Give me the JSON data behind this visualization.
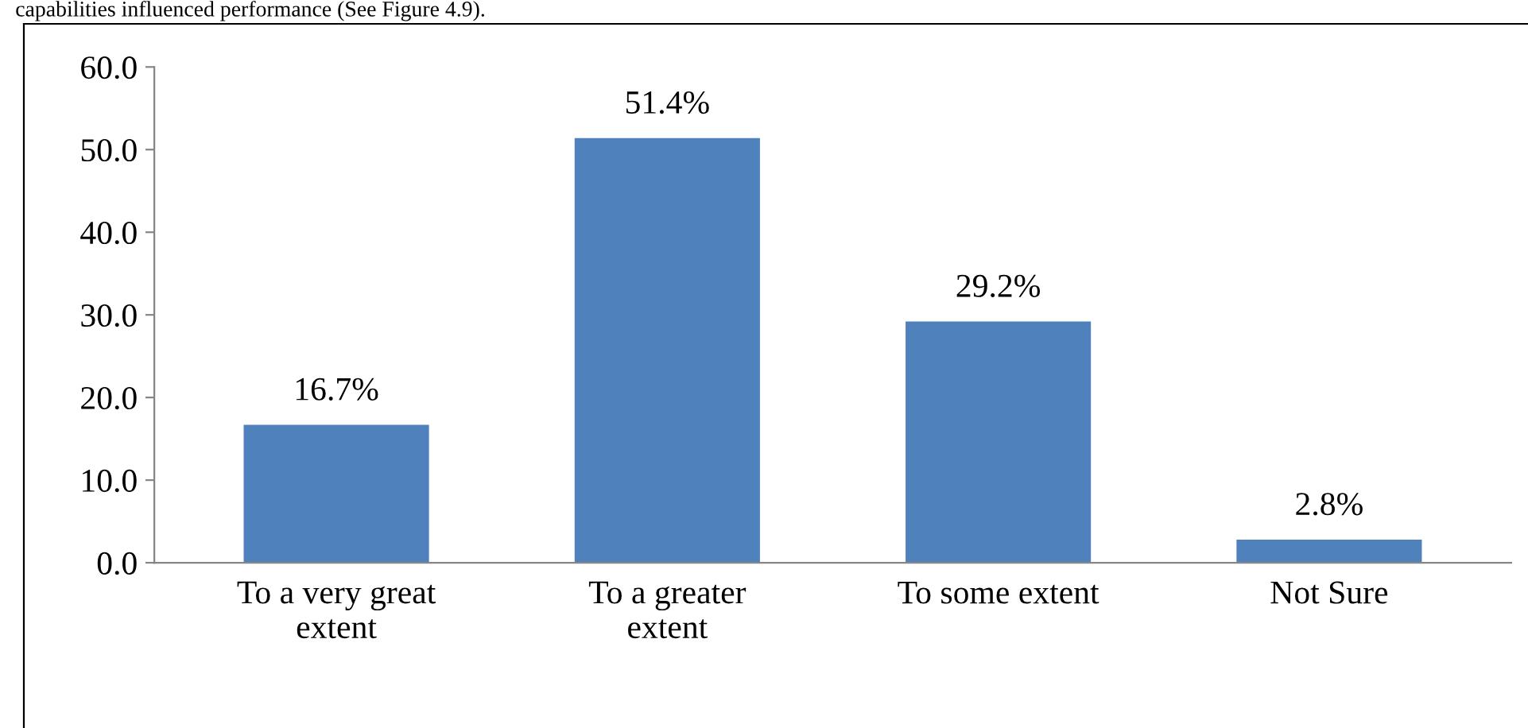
{
  "chart_data": {
    "type": "bar",
    "annotations": [
      "capabilities influenced performance (See Figure 4.9)."
    ],
    "categories": [
      "To a very great\nextent",
      "To a greater\nextent",
      "To some extent",
      "Not Sure"
    ],
    "values": [
      16.7,
      51.4,
      29.2,
      2.8
    ],
    "value_labels": [
      "16.7%",
      "51.4%",
      "29.2%",
      "2.8%"
    ],
    "color": "#4f81bd",
    "ylim": [
      0,
      60
    ],
    "yticks": [
      {
        "value": 0,
        "label": "0.0"
      },
      {
        "value": 10,
        "label": "10.0"
      },
      {
        "value": 20,
        "label": "20.0"
      },
      {
        "value": 30,
        "label": "30.0"
      },
      {
        "value": 40,
        "label": "40.0"
      },
      {
        "value": 50,
        "label": "50.0"
      },
      {
        "value": 60,
        "label": "60.0"
      }
    ],
    "grid": false,
    "legend": false
  }
}
